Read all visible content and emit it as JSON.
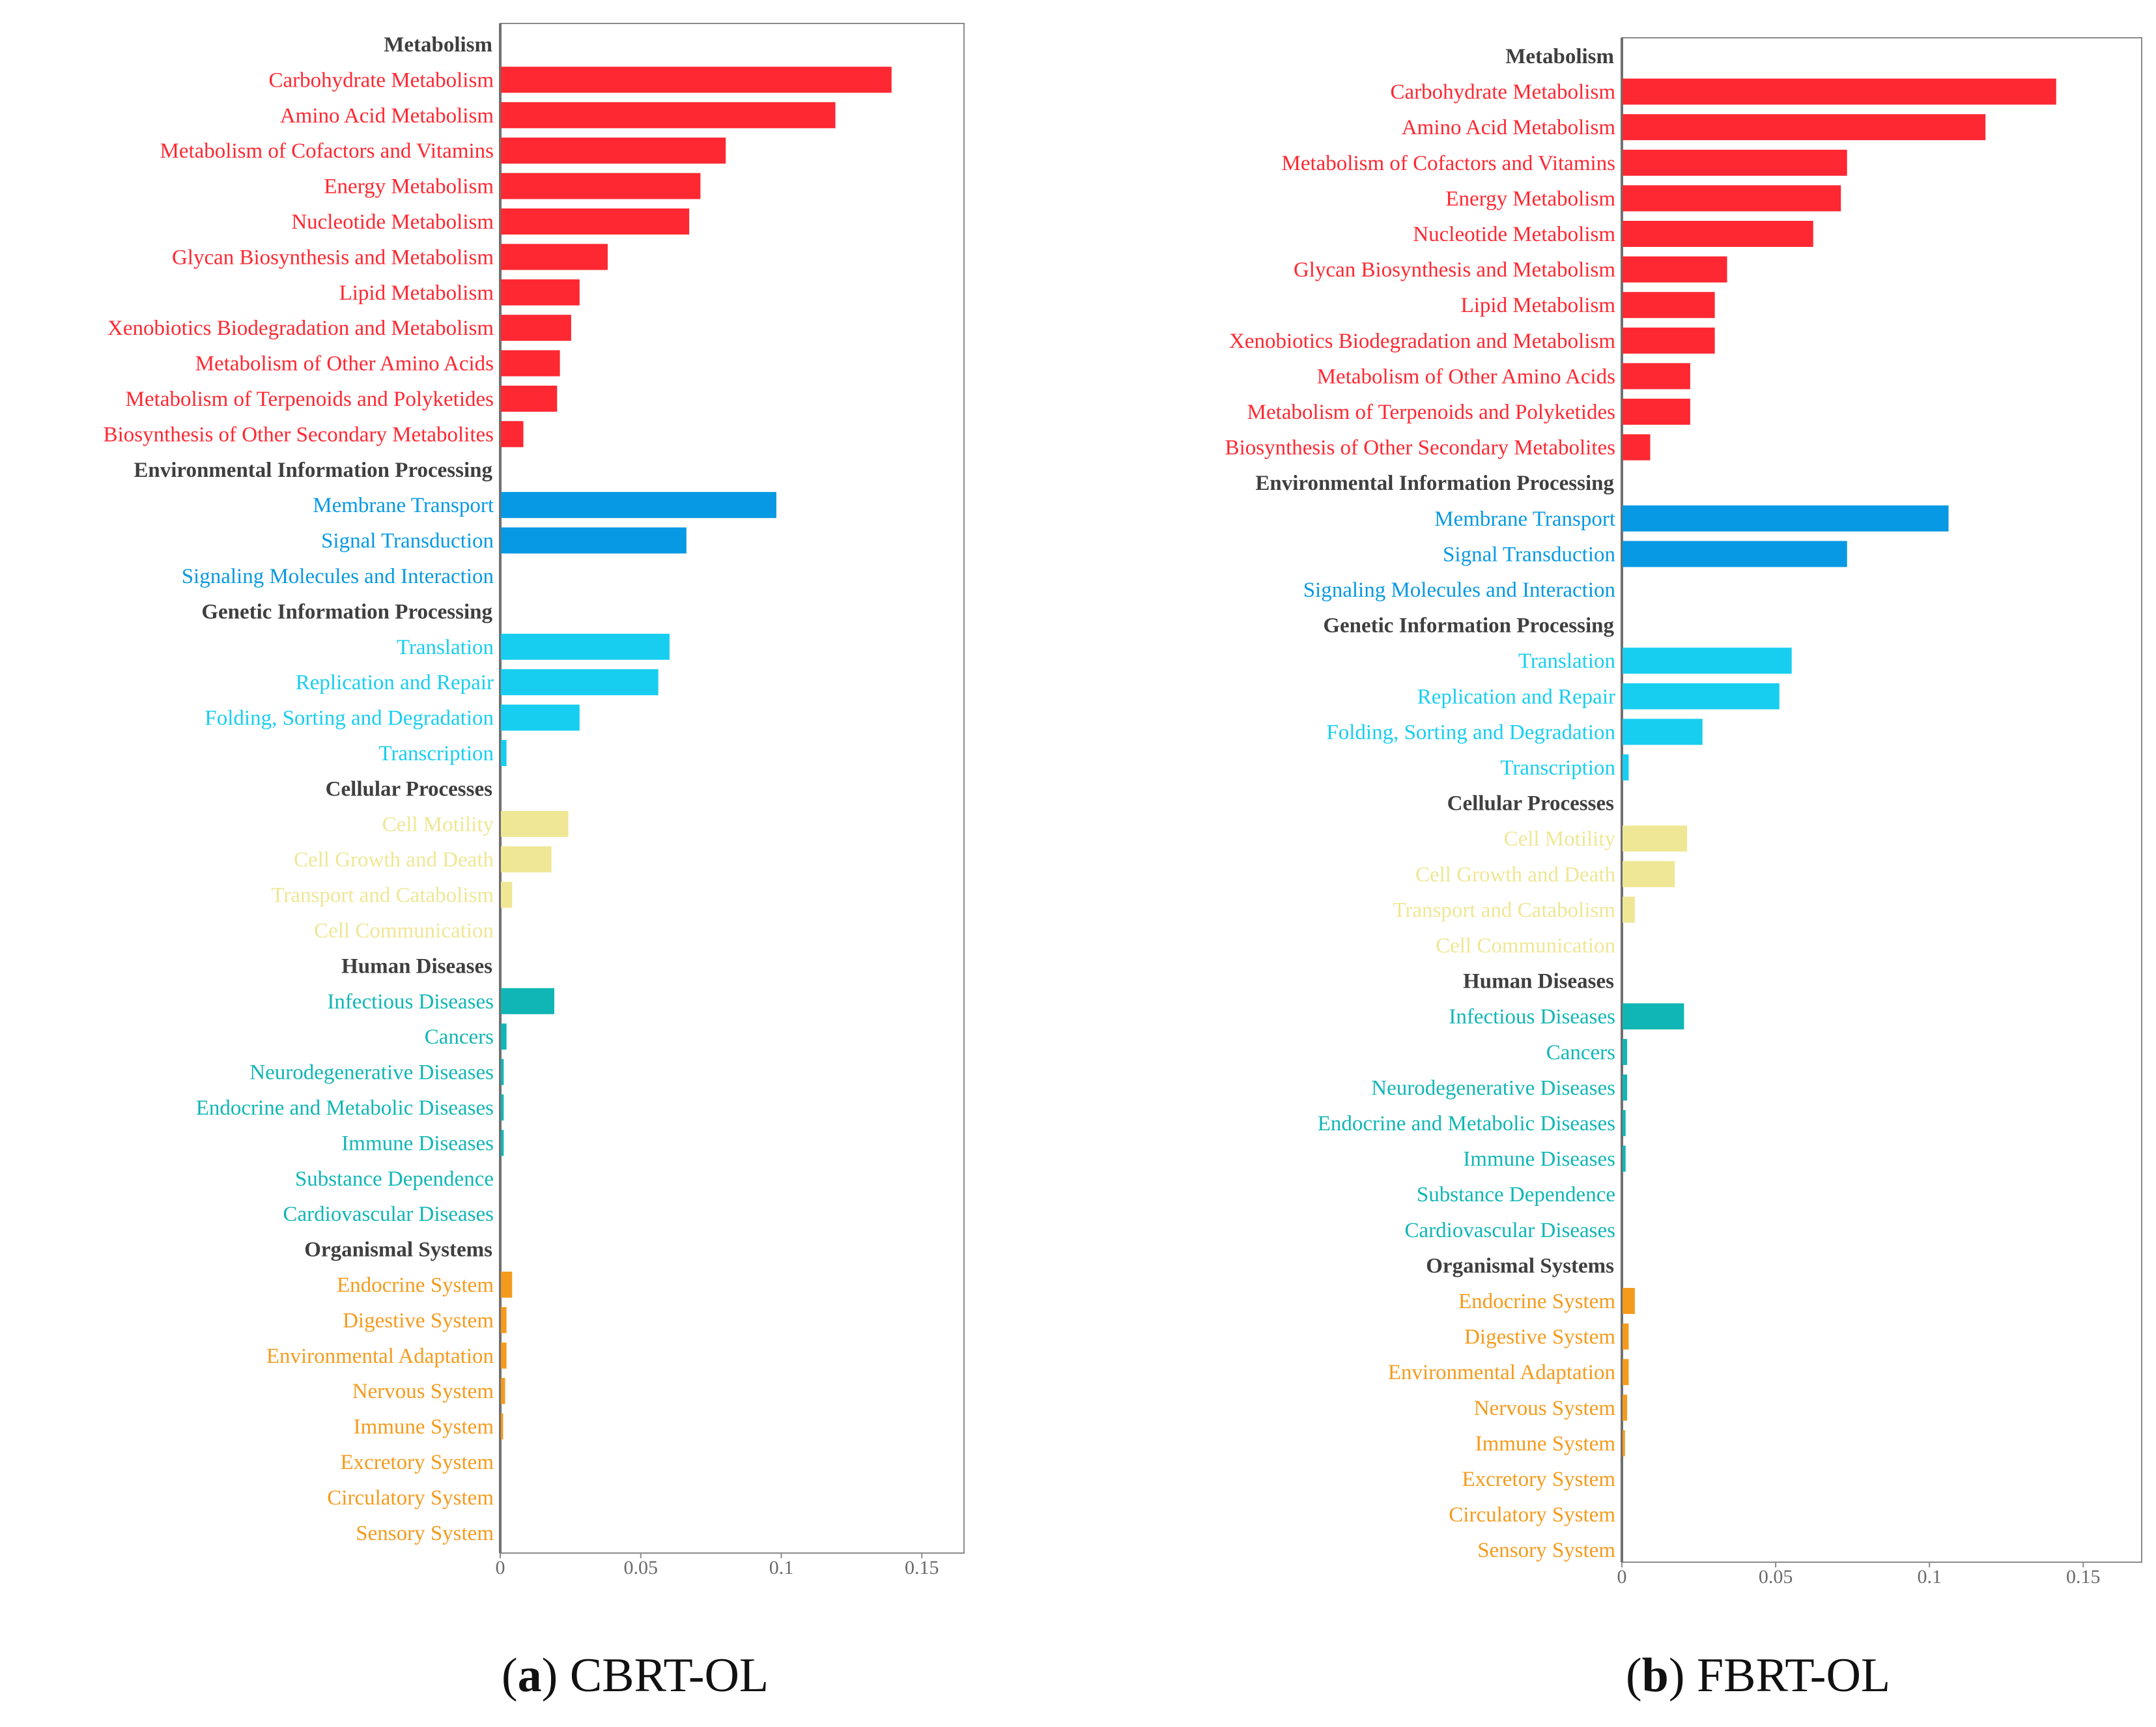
{
  "colors": {
    "metabolism": "#fe2832",
    "environmental": "#0799e3",
    "genetic": "#18cef0",
    "cellular": "#efe795",
    "human": "#10b6b5",
    "organismal": "#f49b1d",
    "header_text": "#3f3f3f",
    "axis": "#808080"
  },
  "chart_data": [
    {
      "type": "bar",
      "orientation": "horizontal",
      "panel_letter": "a",
      "caption": "CBRT-OL",
      "xlim": [
        0,
        0.165
      ],
      "xticks": [
        "0",
        "0.05",
        "0.1",
        "0.15"
      ],
      "xtick_values": [
        0,
        0.05,
        0.1,
        0.15
      ],
      "rows": [
        {
          "label": "Metabolism",
          "header": true
        },
        {
          "label": "Carbohydrate Metabolism",
          "group": "metabolism",
          "value": 0.139
        },
        {
          "label": "Amino Acid Metabolism",
          "group": "metabolism",
          "value": 0.119
        },
        {
          "label": "Metabolism of Cofactors and Vitamins",
          "group": "metabolism",
          "value": 0.08
        },
        {
          "label": "Energy Metabolism",
          "group": "metabolism",
          "value": 0.071
        },
        {
          "label": "Nucleotide Metabolism",
          "group": "metabolism",
          "value": 0.067
        },
        {
          "label": "Glycan Biosynthesis and Metabolism",
          "group": "metabolism",
          "value": 0.038
        },
        {
          "label": "Lipid Metabolism",
          "group": "metabolism",
          "value": 0.028
        },
        {
          "label": "Xenobiotics Biodegradation and Metabolism",
          "group": "metabolism",
          "value": 0.025
        },
        {
          "label": "Metabolism of Other Amino Acids",
          "group": "metabolism",
          "value": 0.021
        },
        {
          "label": "Metabolism of Terpenoids and Polyketides",
          "group": "metabolism",
          "value": 0.02
        },
        {
          "label": "Biosynthesis of Other Secondary Metabolites",
          "group": "metabolism",
          "value": 0.008
        },
        {
          "label": "Environmental Information Processing",
          "header": true
        },
        {
          "label": "Membrane Transport",
          "group": "environmental",
          "value": 0.098
        },
        {
          "label": "Signal Transduction",
          "group": "environmental",
          "value": 0.066
        },
        {
          "label": "Signaling Molecules and Interaction",
          "group": "environmental",
          "value": 0
        },
        {
          "label": "Genetic Information Processing",
          "header": true
        },
        {
          "label": "Translation",
          "group": "genetic",
          "value": 0.06
        },
        {
          "label": "Replication and Repair",
          "group": "genetic",
          "value": 0.056
        },
        {
          "label": "Folding, Sorting and Degradation",
          "group": "genetic",
          "value": 0.028
        },
        {
          "label": "Transcription",
          "group": "genetic",
          "value": 0.002
        },
        {
          "label": "Cellular Processes",
          "header": true
        },
        {
          "label": "Cell Motility",
          "group": "cellular",
          "value": 0.024
        },
        {
          "label": "Cell Growth and Death",
          "group": "cellular",
          "value": 0.018
        },
        {
          "label": "Transport and Catabolism",
          "group": "cellular",
          "value": 0.004
        },
        {
          "label": "Cell Communication",
          "group": "cellular",
          "value": 0
        },
        {
          "label": "Human Diseases",
          "header": true
        },
        {
          "label": "Infectious Diseases",
          "group": "human",
          "value": 0.019
        },
        {
          "label": "Cancers",
          "group": "human",
          "value": 0.002
        },
        {
          "label": "Neurodegenerative Diseases",
          "group": "human",
          "value": 0.001
        },
        {
          "label": "Endocrine and Metabolic Diseases",
          "group": "human",
          "value": 0.001
        },
        {
          "label": "Immune Diseases",
          "group": "human",
          "value": 0.001
        },
        {
          "label": "Substance Dependence",
          "group": "human",
          "value": 0
        },
        {
          "label": "Cardiovascular Diseases",
          "group": "human",
          "value": 0
        },
        {
          "label": "Organismal Systems",
          "header": true
        },
        {
          "label": "Endocrine System",
          "group": "organismal",
          "value": 0.004
        },
        {
          "label": "Digestive System",
          "group": "organismal",
          "value": 0.002
        },
        {
          "label": "Environmental Adaptation",
          "group": "organismal",
          "value": 0.002
        },
        {
          "label": "Nervous System",
          "group": "organismal",
          "value": 0.0015
        },
        {
          "label": "Immune System",
          "group": "organismal",
          "value": 0.0008
        },
        {
          "label": "Excretory System",
          "group": "organismal",
          "value": 0
        },
        {
          "label": "Circulatory System",
          "group": "organismal",
          "value": 0
        },
        {
          "label": "Sensory System",
          "group": "organismal",
          "value": 0
        }
      ]
    },
    {
      "type": "bar",
      "orientation": "horizontal",
      "panel_letter": "b",
      "caption": "FBRT-OL",
      "xlim": [
        0,
        0.169
      ],
      "xticks": [
        "0",
        "0.05",
        "0.1",
        "0.15"
      ],
      "xtick_values": [
        0,
        0.05,
        0.1,
        0.15
      ],
      "rows": [
        {
          "label": "Metabolism",
          "header": true
        },
        {
          "label": "Carbohydrate Metabolism",
          "group": "metabolism",
          "value": 0.141
        },
        {
          "label": "Amino Acid Metabolism",
          "group": "metabolism",
          "value": 0.118
        },
        {
          "label": "Metabolism of Cofactors and Vitamins",
          "group": "metabolism",
          "value": 0.073
        },
        {
          "label": "Energy Metabolism",
          "group": "metabolism",
          "value": 0.071
        },
        {
          "label": "Nucleotide Metabolism",
          "group": "metabolism",
          "value": 0.062
        },
        {
          "label": "Glycan Biosynthesis and Metabolism",
          "group": "metabolism",
          "value": 0.034
        },
        {
          "label": "Lipid Metabolism",
          "group": "metabolism",
          "value": 0.03
        },
        {
          "label": "Xenobiotics Biodegradation and Metabolism",
          "group": "metabolism",
          "value": 0.03
        },
        {
          "label": "Metabolism of Other Amino Acids",
          "group": "metabolism",
          "value": 0.022
        },
        {
          "label": "Metabolism of Terpenoids and Polyketides",
          "group": "metabolism",
          "value": 0.022
        },
        {
          "label": "Biosynthesis of Other Secondary Metabolites",
          "group": "metabolism",
          "value": 0.009
        },
        {
          "label": "Environmental Information Processing",
          "header": true
        },
        {
          "label": "Membrane Transport",
          "group": "environmental",
          "value": 0.106
        },
        {
          "label": "Signal Transduction",
          "group": "environmental",
          "value": 0.073
        },
        {
          "label": "Signaling Molecules and Interaction",
          "group": "environmental",
          "value": 0
        },
        {
          "label": "Genetic Information Processing",
          "header": true
        },
        {
          "label": "Translation",
          "group": "genetic",
          "value": 0.055
        },
        {
          "label": "Replication and Repair",
          "group": "genetic",
          "value": 0.051
        },
        {
          "label": "Folding, Sorting and Degradation",
          "group": "genetic",
          "value": 0.026
        },
        {
          "label": "Transcription",
          "group": "genetic",
          "value": 0.002
        },
        {
          "label": "Cellular Processes",
          "header": true
        },
        {
          "label": "Cell Motility",
          "group": "cellular",
          "value": 0.021
        },
        {
          "label": "Cell Growth and Death",
          "group": "cellular",
          "value": 0.017
        },
        {
          "label": "Transport and Catabolism",
          "group": "cellular",
          "value": 0.004
        },
        {
          "label": "Cell Communication",
          "group": "cellular",
          "value": 0
        },
        {
          "label": "Human Diseases",
          "header": true
        },
        {
          "label": "Infectious Diseases",
          "group": "human",
          "value": 0.02
        },
        {
          "label": "Cancers",
          "group": "human",
          "value": 0.0015
        },
        {
          "label": "Neurodegenerative Diseases",
          "group": "human",
          "value": 0.0015
        },
        {
          "label": "Endocrine and Metabolic Diseases",
          "group": "human",
          "value": 0.001
        },
        {
          "label": "Immune Diseases",
          "group": "human",
          "value": 0.001
        },
        {
          "label": "Substance Dependence",
          "group": "human",
          "value": 0
        },
        {
          "label": "Cardiovascular Diseases",
          "group": "human",
          "value": 0
        },
        {
          "label": "Organismal Systems",
          "header": true
        },
        {
          "label": "Endocrine System",
          "group": "organismal",
          "value": 0.004
        },
        {
          "label": "Digestive System",
          "group": "organismal",
          "value": 0.002
        },
        {
          "label": "Environmental Adaptation",
          "group": "organismal",
          "value": 0.002
        },
        {
          "label": "Nervous System",
          "group": "organismal",
          "value": 0.0015
        },
        {
          "label": "Immune System",
          "group": "organismal",
          "value": 0.0008
        },
        {
          "label": "Excretory System",
          "group": "organismal",
          "value": 0
        },
        {
          "label": "Circulatory System",
          "group": "organismal",
          "value": 0
        },
        {
          "label": "Sensory System",
          "group": "organismal",
          "value": 0
        }
      ]
    }
  ]
}
